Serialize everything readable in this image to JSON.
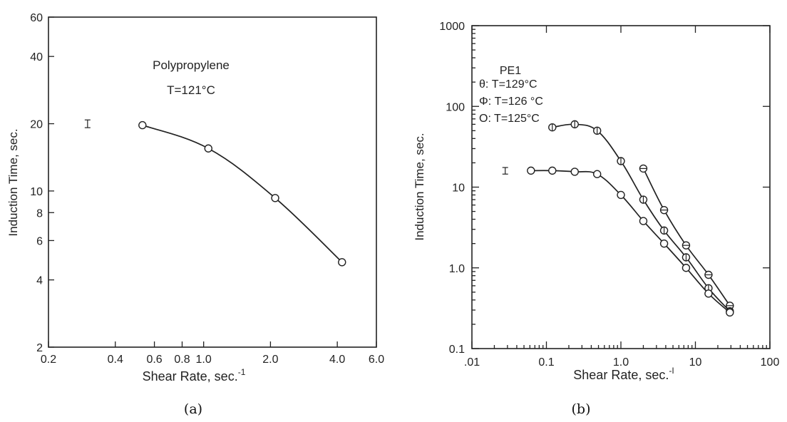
{
  "chart_data": [
    {
      "type": "line",
      "panel_label": "(a)",
      "xscale": "log",
      "yscale": "log",
      "xlim": [
        0.2,
        6.0
      ],
      "ylim": [
        2,
        60
      ],
      "xlabel": "Shear Rate, sec.",
      "xlabel_sup": "-1",
      "ylabel": "Induction Time, sec.",
      "xticks": [
        0.2,
        0.4,
        0.6,
        0.8,
        1.0,
        2.0,
        4.0,
        6.0
      ],
      "xtick_labels": [
        "0.2",
        "0.4",
        "0.6",
        "0.8",
        "1.0",
        "2.0",
        "4.0",
        "6.0"
      ],
      "yticks": [
        2,
        4,
        6,
        8,
        10,
        20,
        40,
        60
      ],
      "ytick_labels": [
        "2",
        "4",
        "6",
        "8",
        "10",
        "20",
        "40",
        "60"
      ],
      "annotations": [
        "Polypropylene",
        "T=121°C"
      ],
      "error_bar": {
        "x": 0.3,
        "y": 20,
        "low": 19.2,
        "high": 20.8
      },
      "series": [
        {
          "marker": "open-circle",
          "x": [
            0.53,
            1.05,
            2.1,
            4.2
          ],
          "y": [
            19.7,
            15.5,
            9.3,
            4.8
          ]
        }
      ]
    },
    {
      "type": "line",
      "panel_label": "(b)",
      "xscale": "log",
      "yscale": "log",
      "xlim": [
        0.01,
        100
      ],
      "ylim": [
        0.1,
        1000
      ],
      "xlabel": "Shear Rate, sec.",
      "xlabel_sup": "-I",
      "ylabel": "Induction Time, sec.",
      "xticks": [
        0.01,
        0.1,
        1,
        10,
        100
      ],
      "xtick_labels": [
        ".01",
        "0.1",
        "1.0",
        "10",
        "100"
      ],
      "yticks": [
        0.1,
        1,
        10,
        100,
        1000
      ],
      "ytick_labels": [
        "0.1",
        "1.0",
        "10",
        "100",
        "1000"
      ],
      "legend_title": "PE1",
      "legend_position": "top-left",
      "error_bar": {
        "x": 0.028,
        "y": 16,
        "low": 14.5,
        "high": 17.5
      },
      "series": [
        {
          "name": "T=129°C",
          "legend_symbol": "θ",
          "marker": "circle-hbar",
          "x": [
            2.0,
            3.8,
            7.5,
            15,
            29
          ],
          "y": [
            17,
            5.2,
            1.9,
            0.82,
            0.34
          ]
        },
        {
          "name": "T=126 °C",
          "legend_symbol": "Φ",
          "marker": "circle-vbar",
          "x": [
            0.12,
            0.24,
            0.48,
            1.0,
            2.0,
            3.8,
            7.5,
            15,
            29
          ],
          "y": [
            55,
            60,
            50,
            21,
            7.0,
            2.9,
            1.35,
            0.56,
            0.29
          ]
        },
        {
          "name": "T=125°C",
          "legend_symbol": "O",
          "marker": "open-circle",
          "x": [
            0.062,
            0.12,
            0.24,
            0.48,
            1.0,
            2.0,
            3.8,
            7.5,
            15,
            29
          ],
          "y": [
            16,
            16,
            15.5,
            14.5,
            8.0,
            3.8,
            2.0,
            1.0,
            0.48,
            0.28
          ]
        }
      ]
    }
  ]
}
